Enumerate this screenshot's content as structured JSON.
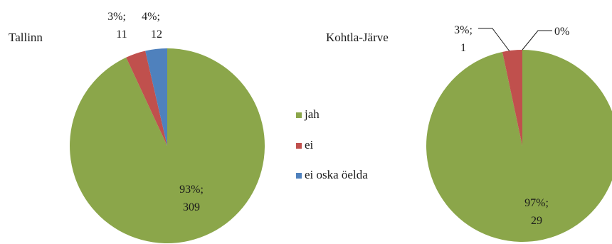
{
  "chart_data": [
    {
      "type": "pie",
      "title": "Tallinn",
      "slices": [
        {
          "category": "jah",
          "percent_label": "93%;",
          "count_label": "309",
          "value": 309
        },
        {
          "category": "ei",
          "percent_label": "3%;",
          "count_label": "11",
          "value": 11
        },
        {
          "category": "ei oska öelda",
          "percent_label": "4%;",
          "count_label": "12",
          "value": 12
        }
      ]
    },
    {
      "type": "pie",
      "title": "Kohtla-Järve",
      "slices": [
        {
          "category": "jah",
          "percent_label": "97%;",
          "count_label": "29",
          "value": 29
        },
        {
          "category": "ei",
          "percent_label": "3%;",
          "count_label": "1",
          "value": 1
        },
        {
          "category": "ei oska öelda",
          "percent_label": "0%",
          "count_label": "",
          "value": 0
        }
      ]
    }
  ],
  "legend": {
    "placement": "center",
    "items": [
      {
        "label": "jah",
        "color": "#8ba64a"
      },
      {
        "label": "ei",
        "color": "#c0504d"
      },
      {
        "label": "ei oska öelda",
        "color": "#4f81bd"
      }
    ]
  }
}
